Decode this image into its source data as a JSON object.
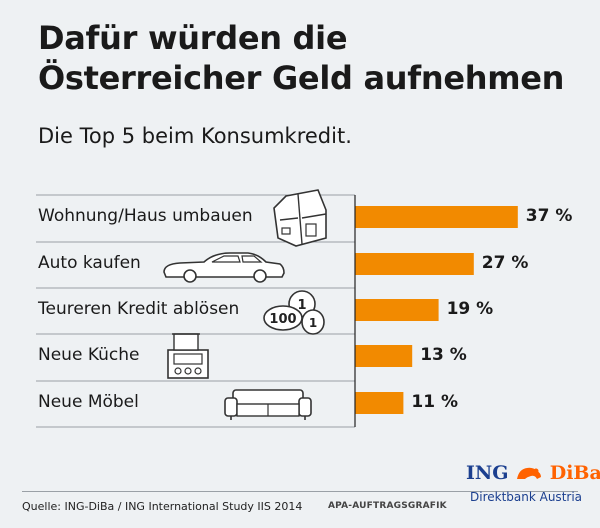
{
  "title": "Dafür würden die Österreicher Geld aufnehmen",
  "subtitle": "Die Top 5 beim Konsumkredit.",
  "chart_data": {
    "type": "bar",
    "orientation": "horizontal",
    "categories": [
      "Wohnung/Haus umbauen",
      "Auto kaufen",
      "Teureren Kredit ablösen",
      "Neue Küche",
      "Neue Möbel"
    ],
    "values": [
      37,
      27,
      19,
      13,
      11
    ],
    "value_labels": [
      "37 %",
      "27 %",
      "19 %",
      "13 %",
      "11 %"
    ],
    "icons": [
      "floor-plan-icon",
      "car-icon",
      "coins-icon",
      "stove-icon",
      "sofa-icon"
    ],
    "unit": "%",
    "xlim": [
      0,
      45
    ],
    "bar_color": "#f28a00"
  },
  "coin_text": [
    "1",
    "100",
    "1"
  ],
  "footer": {
    "source": "Quelle: ING-DiBa / ING International Study IIS 2014",
    "credit": "APA-AUFTRAGSGRAFIK"
  },
  "logo": {
    "brand_left": "ING",
    "brand_right": "DiBa",
    "tagline": "Direktbank Austria",
    "brand_color": "#1b3f8f",
    "accent_color": "#ff6200"
  }
}
